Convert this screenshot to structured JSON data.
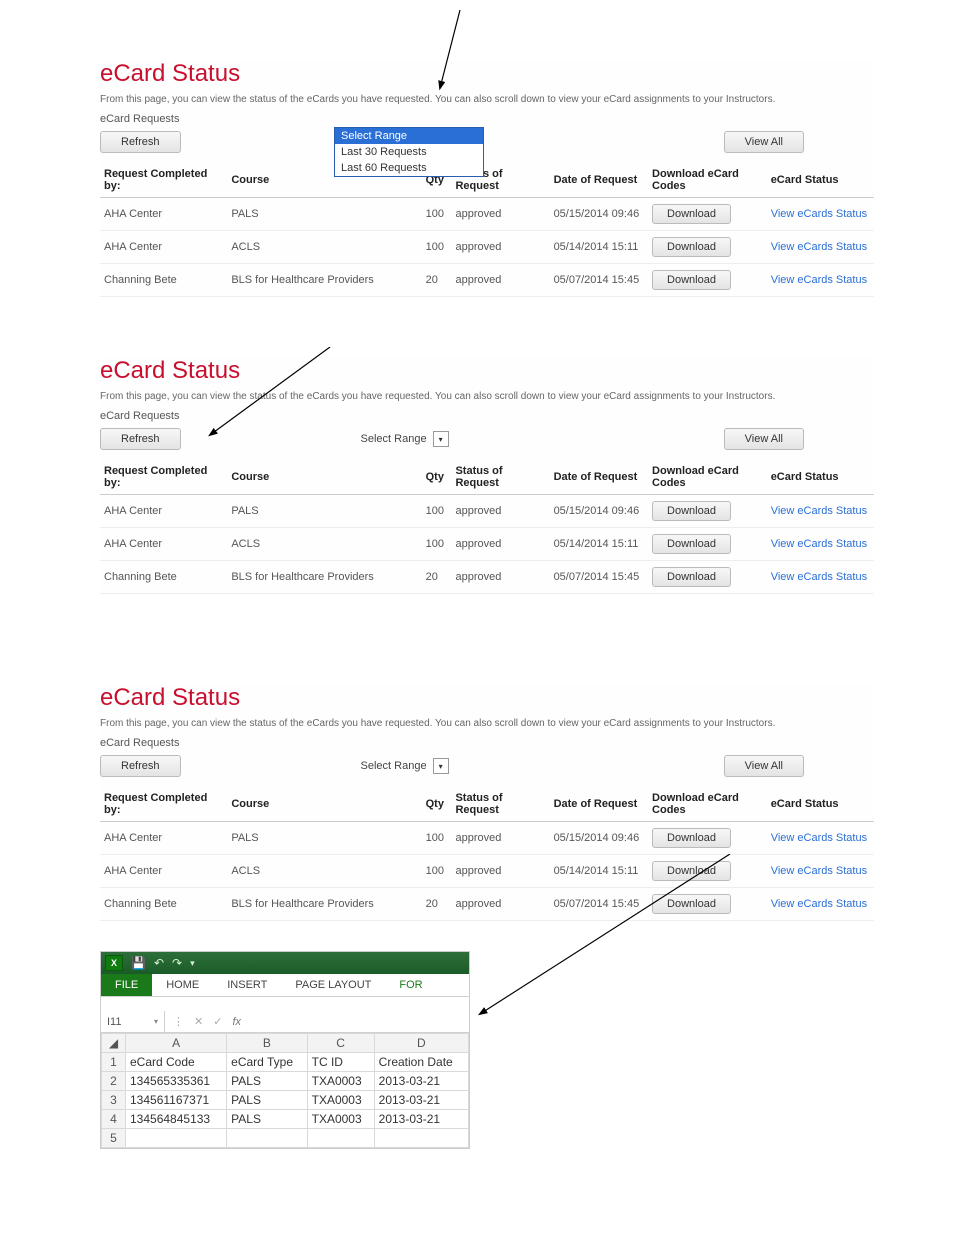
{
  "colors": {
    "title": "#c8102e",
    "link": "#2a6fd6",
    "dropdown_highlight": "#2a6fd6",
    "excel_green": "#1a7a1a"
  },
  "common": {
    "title": "eCard Status",
    "description": "From this page, you can view the status of the eCards you have requested. You can also scroll down to view your eCard assignments to your Instructors.",
    "subheading": "eCard Requests",
    "refresh_label": "Refresh",
    "viewall_label": "View All",
    "download_label": "Download",
    "link_label": "View eCards Status",
    "select_label": "Select Range",
    "headers": {
      "req": "Request Completed by:",
      "course": "Course",
      "qty": "Qty",
      "status": "Status of Request",
      "date": "Date of Request",
      "dl": "Download eCard Codes",
      "ec": "eCard Status"
    },
    "rows": [
      {
        "req": "AHA Center",
        "course": "PALS",
        "qty": "100",
        "status": "approved",
        "date": "05/15/2014 09:46"
      },
      {
        "req": "AHA Center",
        "course": "ACLS",
        "qty": "100",
        "status": "approved",
        "date": "05/14/2014 15:11"
      },
      {
        "req": "Channing Bete",
        "course": "BLS for Healthcare Providers",
        "qty": "20",
        "status": "approved",
        "date": "05/07/2014 15:45"
      }
    ]
  },
  "panel1": {
    "dropdown_options": [
      "Select Range",
      "Last 30 Requests",
      "Last 60 Requests"
    ],
    "dropdown_selected_index": 0
  },
  "excel": {
    "tabs": [
      "FILE",
      "HOME",
      "INSERT",
      "PAGE LAYOUT",
      "FOR"
    ],
    "active_tab_index": 0,
    "cell_ref": "I11",
    "col_headers": [
      "A",
      "B",
      "C",
      "D"
    ],
    "sheet_headers": [
      "eCard Code",
      "eCard Type",
      "TC ID",
      "Creation Date"
    ],
    "sheet_rows": [
      [
        "134565335361",
        "PALS",
        "TXA0003",
        "2013-03-21"
      ],
      [
        "134561167371",
        "PALS",
        "TXA0003",
        "2013-03-21"
      ],
      [
        "134564845133",
        "PALS",
        "TXA0003",
        "2013-03-21"
      ]
    ],
    "row_numbers": [
      "1",
      "2",
      "3",
      "4",
      "5"
    ]
  }
}
